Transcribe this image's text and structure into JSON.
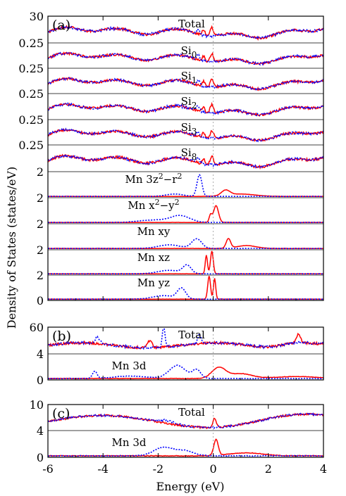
{
  "chart_data": {
    "type": "line",
    "xlabel": "Energy (eV)",
    "ylabel": "Density of States (states/eV)",
    "xlim": [
      -6,
      4
    ],
    "x_ticks": [
      "-6",
      "-4",
      "-2",
      "0",
      "2",
      "4"
    ],
    "fermi_level": 0,
    "series_styles": [
      {
        "color": "#ff0000",
        "dash": "solid"
      },
      {
        "color": "#0000ff",
        "dash": "dotted"
      }
    ],
    "panels": [
      {
        "letter": "(a)",
        "rows": [
          {
            "label": "Total",
            "sub": "",
            "sup": "",
            "y_tick": "30",
            "kind": "total",
            "seed": 1
          },
          {
            "label": "Si",
            "sub": "0",
            "sup": "",
            "y_tick": "0.25",
            "kind": "si",
            "seed": 2
          },
          {
            "label": "Si",
            "sub": "1",
            "sup": "",
            "y_tick": "0.25",
            "kind": "si",
            "seed": 3
          },
          {
            "label": "Si",
            "sub": "2",
            "sup": "",
            "y_tick": "0.25",
            "kind": "si",
            "seed": 4
          },
          {
            "label": "Si",
            "sub": "3",
            "sup": "",
            "y_tick": "0.25",
            "kind": "si",
            "seed": 5
          },
          {
            "label": "Si",
            "sub": "8",
            "sup": "",
            "y_tick": "0.25",
            "kind": "si",
            "seed": 6
          },
          {
            "label": "Mn 3z",
            "sub": "",
            "sup": "2",
            "label2": "−r",
            "sup2": "2",
            "y_tick": "2",
            "kind": "mn_z2",
            "seed": 7
          },
          {
            "label": "Mn x",
            "sub": "",
            "sup": "2",
            "label2": "−y",
            "sup2": "2",
            "y_tick": "2",
            "kind": "mn_x2",
            "seed": 8
          },
          {
            "label": "Mn xy",
            "sub": "",
            "sup": "",
            "y_tick": "2",
            "kind": "mn_xy",
            "seed": 9
          },
          {
            "label": "Mn xz",
            "sub": "",
            "sup": "",
            "y_tick": "2",
            "kind": "mn_xz",
            "seed": 10
          },
          {
            "label": "Mn yz",
            "sub": "",
            "sup": "",
            "y_tick": "2",
            "kind": "mn_yz",
            "seed": 11
          }
        ],
        "bottom_tick": "0"
      },
      {
        "letter": "(b)",
        "rows": [
          {
            "label": "Total",
            "sub": "",
            "sup": "",
            "y_tick": "60",
            "kind": "total_b",
            "seed": 12
          },
          {
            "label": "Mn 3d",
            "sub": "",
            "sup": "",
            "y_tick": "4",
            "kind": "mn3d_b",
            "seed": 13
          }
        ],
        "bottom_tick": "0"
      },
      {
        "letter": "(c)",
        "rows": [
          {
            "label": "Total",
            "sub": "",
            "sup": "",
            "y_tick": "10",
            "kind": "total_c",
            "seed": 14
          },
          {
            "label": "Mn 3d",
            "sub": "",
            "sup": "",
            "y_tick": "4",
            "kind": "mn3d_c",
            "seed": 15
          }
        ],
        "bottom_tick": "0"
      }
    ]
  }
}
